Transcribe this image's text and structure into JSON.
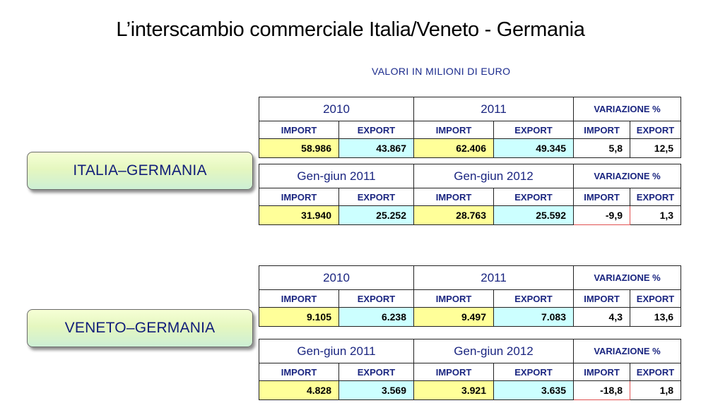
{
  "title": "L’interscambio commerciale Italia/Veneto - Germania",
  "subtitle": "VALORI IN MILIONI DI EURO",
  "col_labels": {
    "import": "IMPORT",
    "export": "EXPORT"
  },
  "sections": [
    {
      "label": "ITALIA–GERMANIA",
      "tables": [
        {
          "period1": "2010",
          "period2": "2011",
          "variation": "VARIAZIONE  %",
          "values": {
            "p1_import": "58.986",
            "p1_export": "43.867",
            "p2_import": "62.406",
            "p2_export": "49.345",
            "var_import": "5,8",
            "var_export": "12,5"
          }
        },
        {
          "period1": "Gen-giun 2011",
          "period2": "Gen-giun 2012",
          "variation": "VARIAZIONE  %",
          "values": {
            "p1_import": "31.940",
            "p1_export": "25.252",
            "p2_import": "28.763",
            "p2_export": "25.592",
            "var_import": "-9,9",
            "var_export": "1,3"
          }
        }
      ]
    },
    {
      "label": "VENETO–GERMANIA",
      "tables": [
        {
          "period1": "2010",
          "period2": "2011",
          "variation": "VARIAZIONE  %",
          "values": {
            "p1_import": "9.105",
            "p1_export": "6.238",
            "p2_import": "9.497",
            "p2_export": "7.083",
            "var_import": "4,3",
            "var_export": "13,6"
          }
        },
        {
          "period1": "Gen-giun 2011",
          "period2": "Gen-giun 2012",
          "variation": "VARIAZIONE  %",
          "values": {
            "p1_import": "4.828",
            "p1_export": "3.569",
            "p2_import": "3.921",
            "p2_export": "3.635",
            "var_import": "-18,8",
            "var_export": "1,8"
          }
        }
      ]
    }
  ],
  "colors": {
    "import_cell": "#ffff99",
    "export_cell": "#ccffff",
    "header_text": "#1a2580",
    "negative_border": "#e05050",
    "label_text": "#101d7a"
  }
}
